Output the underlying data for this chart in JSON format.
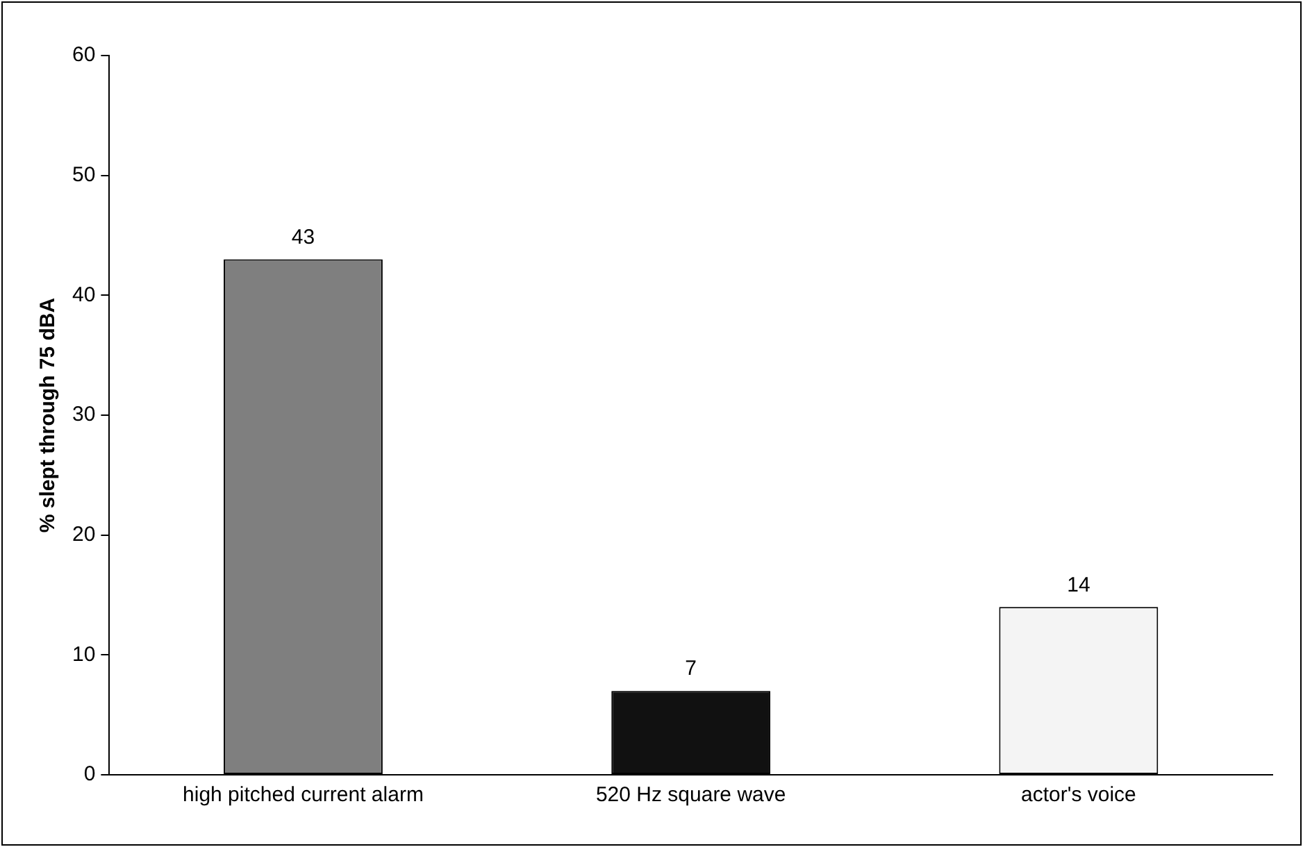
{
  "chart_data": {
    "type": "bar",
    "ylabel": "% slept through 75 dBA",
    "categories": [
      "high pitched current alarm",
      "520 Hz square wave",
      "actor's voice"
    ],
    "values": [
      43,
      7,
      14
    ],
    "colors": [
      "#7f7f7f",
      "#111111",
      "#f4f4f4"
    ],
    "ylim": [
      0,
      60
    ],
    "yticks": [
      0,
      10,
      20,
      30,
      40,
      50,
      60
    ],
    "grid": false,
    "data_labels": true
  }
}
